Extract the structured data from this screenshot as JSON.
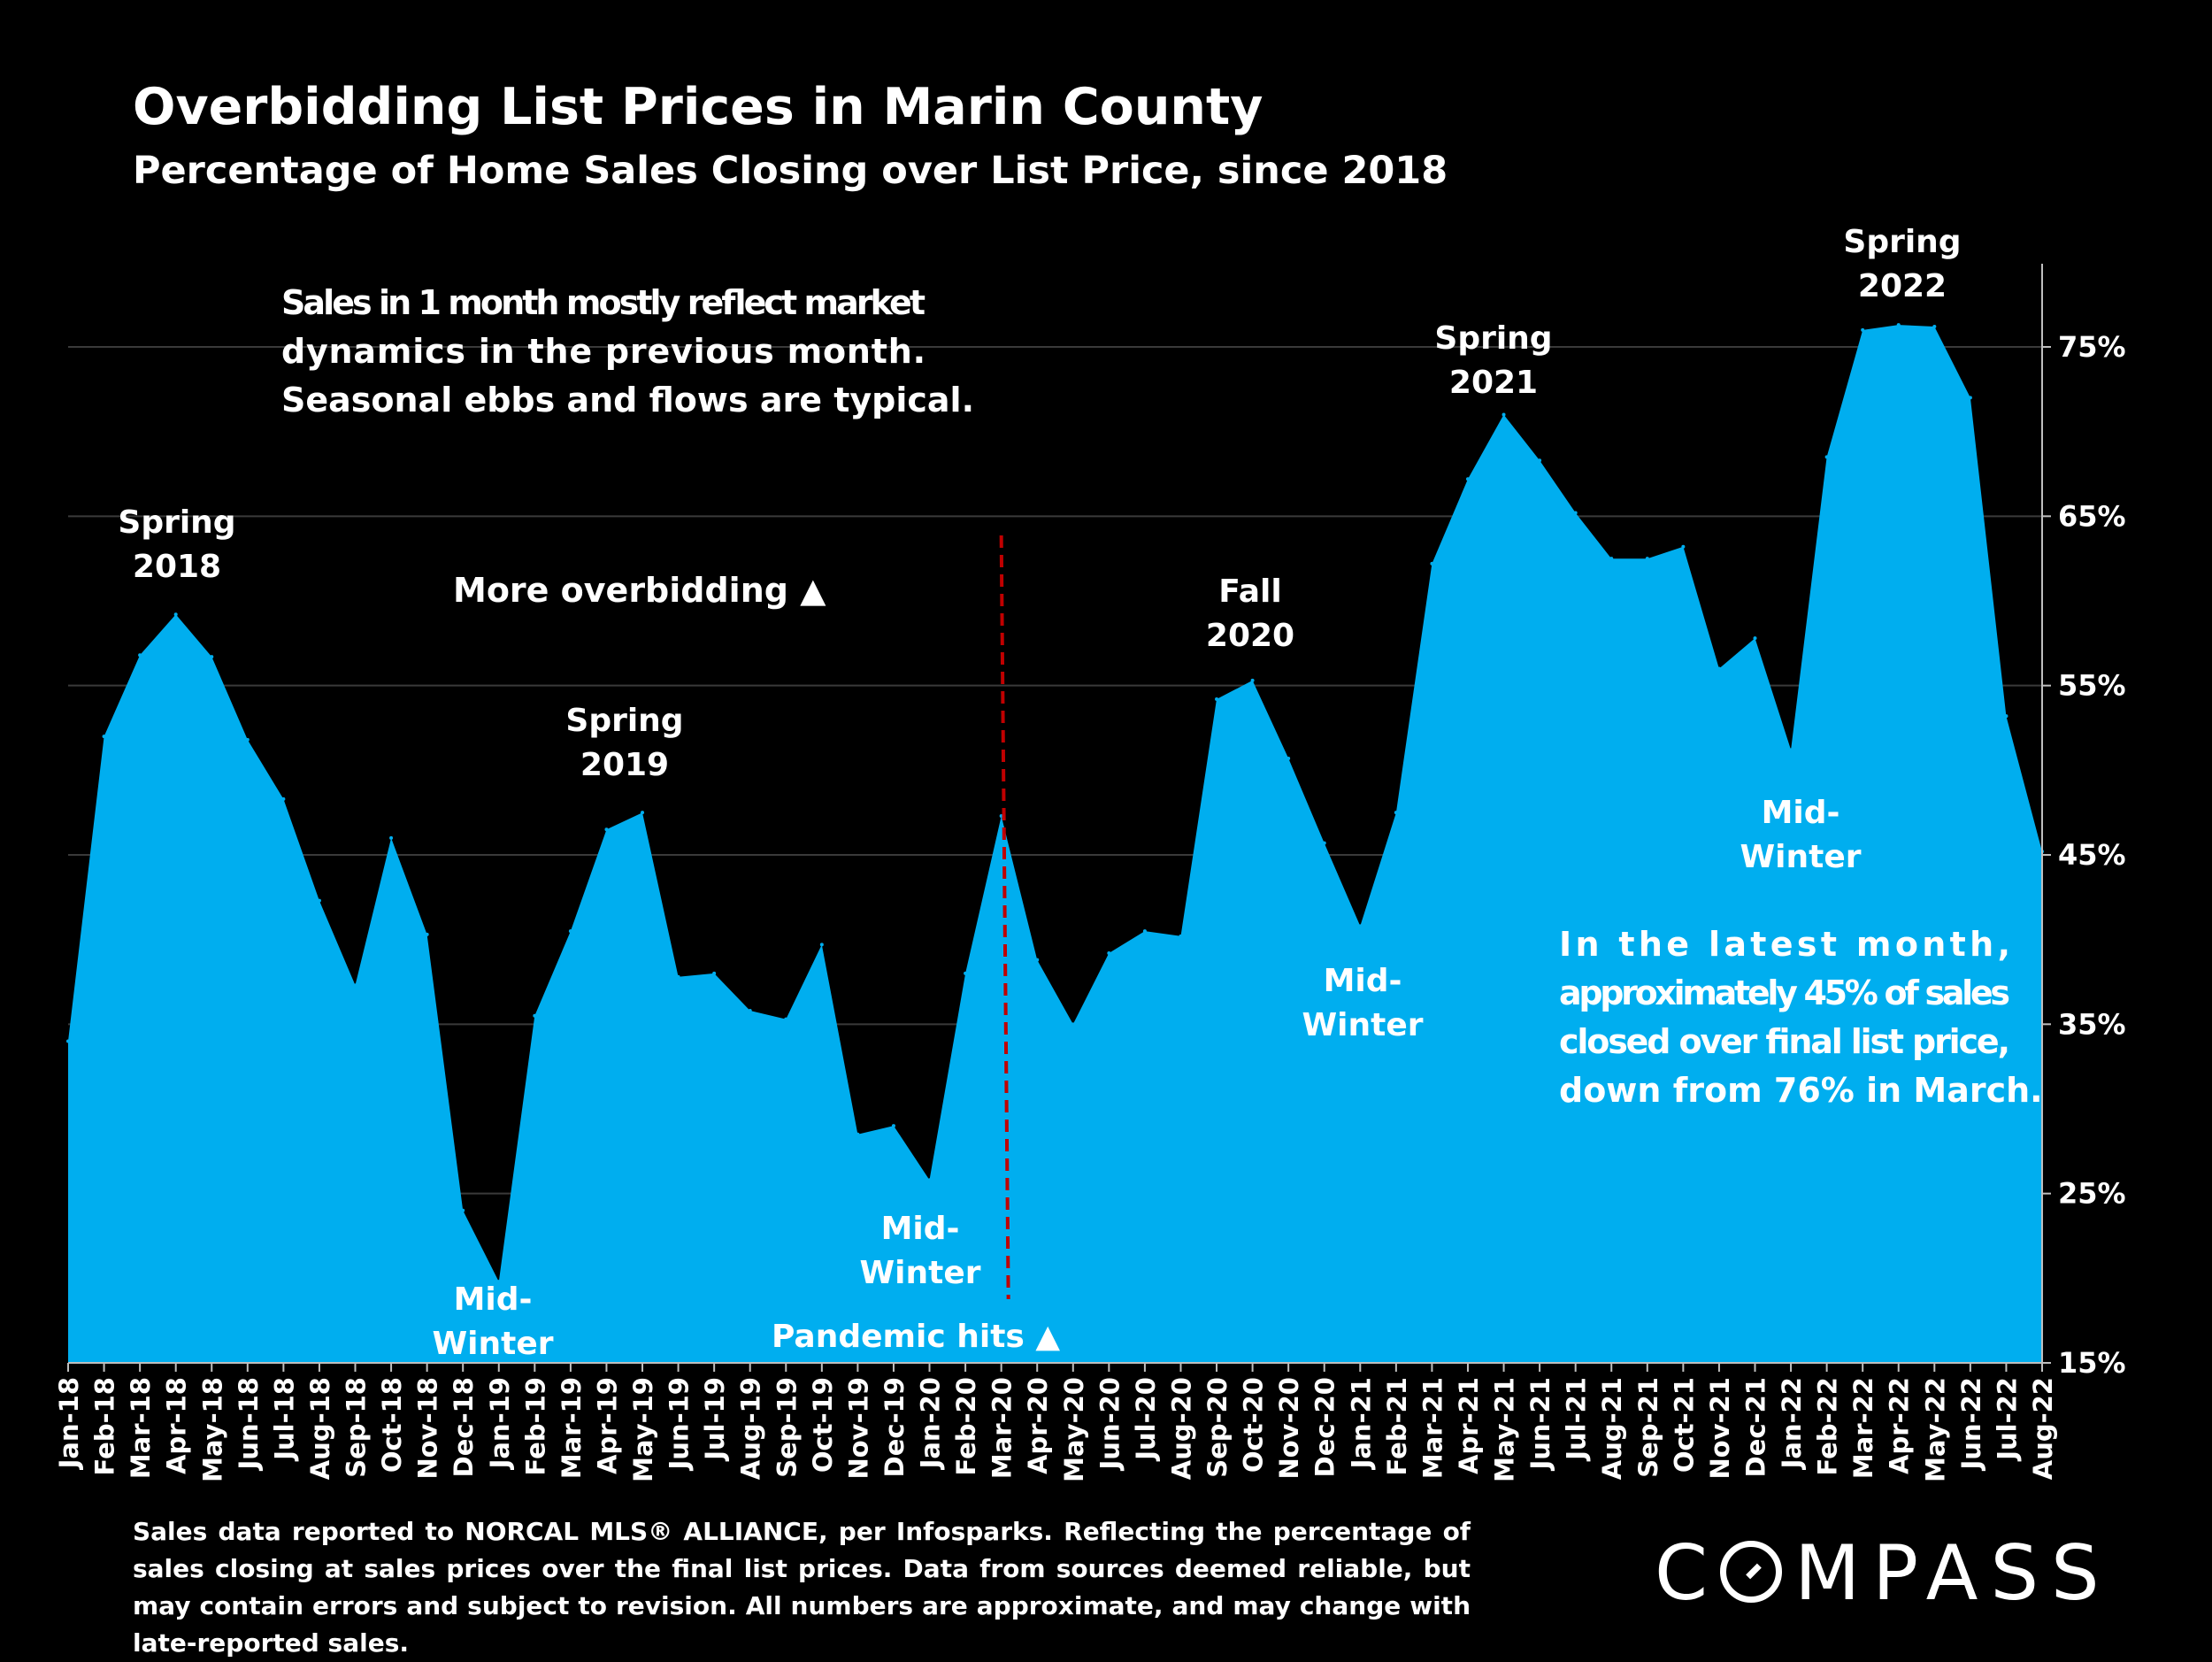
{
  "header": {
    "title": "Overbidding List Prices in Marin County",
    "subtitle": "Percentage of Home Sales Closing over List Price, since 2018"
  },
  "annotations": {
    "note_intro": "Sales in 1 month mostly reflect market dynamics in the previous month. Seasonal ebbs and flows are typical.",
    "more_overbidding": "More overbidding ▲",
    "spring2018": [
      "Spring",
      "2018"
    ],
    "spring2019": [
      "Spring",
      "2019"
    ],
    "fall2020": [
      "Fall",
      "2020"
    ],
    "spring2021": [
      "Spring",
      "2021"
    ],
    "spring2022": [
      "Spring",
      "2022"
    ],
    "midwinter1": [
      "Mid-",
      "Winter"
    ],
    "midwinter2": [
      "Mid-",
      "Winter"
    ],
    "midwinter3": [
      "Mid-",
      "Winter"
    ],
    "midwinter4": [
      "Mid-",
      "Winter"
    ],
    "pandemic": "Pandemic hits ▲",
    "latest": "In the latest month, approximately 45% of sales closed over final list price, down from 76% in March."
  },
  "footnote": "Sales data reported to NORCAL MLS® ALLIANCE, per Infosparks. Reflecting the percentage of sales closing at sales prices over the final list prices. Data from sources deemed reliable, but may contain errors and subject to revision. All numbers are approximate, and may change with late-reported sales.",
  "logo": {
    "text_before": "C",
    "text_after": "MPASS"
  },
  "colors": {
    "area": "#00AEEF",
    "background": "#000000",
    "marker_line": "#C00000",
    "text": "#FFFFFF"
  },
  "chart_data": {
    "type": "area",
    "categories": [
      "Jan-18",
      "Feb-18",
      "Mar-18",
      "Apr-18",
      "May-18",
      "Jun-18",
      "Jul-18",
      "Aug-18",
      "Sep-18",
      "Oct-18",
      "Nov-18",
      "Dec-18",
      "Jan-19",
      "Feb-19",
      "Mar-19",
      "Apr-19",
      "May-19",
      "Jun-19",
      "Jul-19",
      "Aug-19",
      "Sep-19",
      "Oct-19",
      "Nov-19",
      "Dec-19",
      "Jan-20",
      "Feb-20",
      "Mar-20",
      "Apr-20",
      "May-20",
      "Jun-20",
      "Jul-20",
      "Aug-20",
      "Sep-20",
      "Oct-20",
      "Nov-20",
      "Dec-20",
      "Jan-21",
      "Feb-21",
      "Mar-21",
      "Apr-21",
      "May-21",
      "Jun-21",
      "Jul-21",
      "Aug-21",
      "Sep-21",
      "Oct-21",
      "Nov-21",
      "Dec-21",
      "Jan-22",
      "Feb-22",
      "Mar-22",
      "Apr-22",
      "May-22",
      "Jun-22",
      "Jul-22",
      "Aug-22"
    ],
    "values": [
      34.0,
      52.0,
      56.8,
      59.2,
      56.7,
      51.8,
      48.3,
      42.3,
      37.3,
      46.0,
      40.3,
      24.0,
      19.8,
      35.5,
      40.5,
      46.5,
      47.5,
      37.8,
      38.0,
      35.8,
      35.3,
      39.7,
      28.5,
      29.0,
      25.8,
      38.0,
      47.3,
      38.8,
      35.0,
      39.2,
      40.5,
      40.2,
      54.2,
      55.3,
      50.7,
      45.7,
      40.8,
      47.5,
      62.2,
      67.2,
      71.0,
      68.3,
      65.2,
      62.5,
      62.5,
      63.2,
      56.0,
      57.8,
      51.2,
      68.5,
      76.0,
      76.3,
      76.2,
      72.0,
      53.2,
      45.2
    ],
    "ylim": [
      15,
      80
    ],
    "yticks": [
      15,
      25,
      35,
      45,
      55,
      65,
      75
    ],
    "ytick_labels": [
      "15%",
      "25%",
      "35%",
      "45%",
      "55%",
      "65%",
      "75%"
    ],
    "y_axis_side": "right",
    "grid": true,
    "event_marker": {
      "category": "Mar-20",
      "label": "Pandemic hits ▲"
    }
  }
}
